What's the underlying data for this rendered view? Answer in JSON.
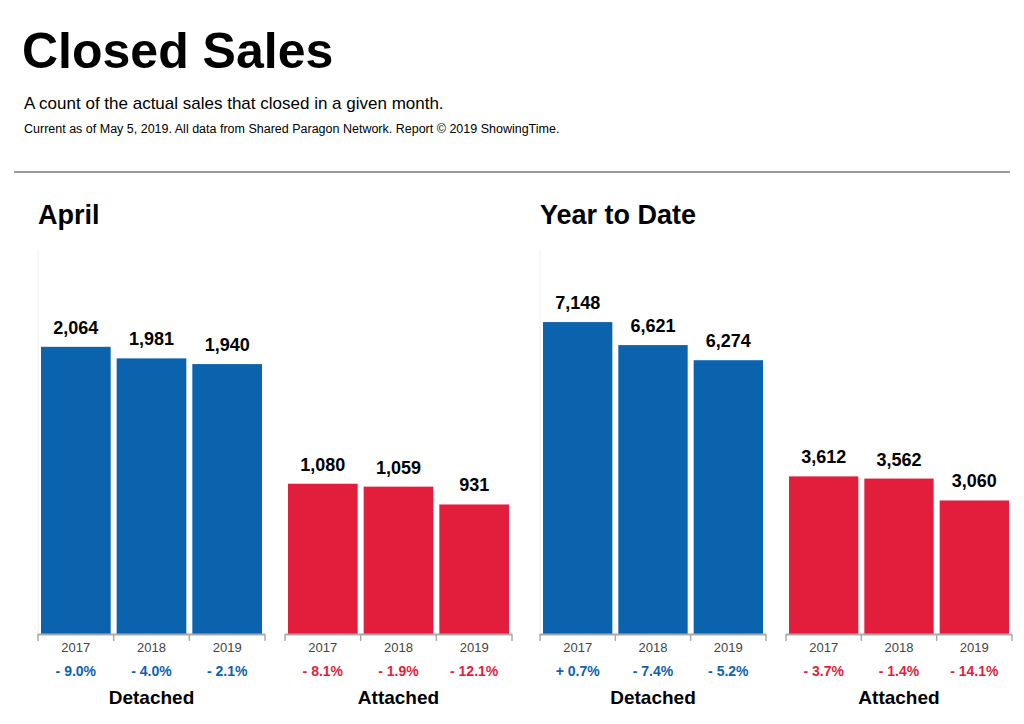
{
  "header": {
    "title": "Closed Sales",
    "subtitle": "A count of the actual sales that closed in a given month.",
    "note": "Current as of May 5, 2019. All data from Shared Paragon Network. Report © 2019 ShowingTime."
  },
  "chart_data": [
    {
      "type": "bar",
      "title": "April",
      "categories": [
        "2017",
        "2018",
        "2019"
      ],
      "ylim": [
        0,
        2760
      ],
      "tick_labels": false,
      "data_labels": true,
      "series": [
        {
          "name": "Detached",
          "color": "#0b63ae",
          "values": [
            2064,
            1981,
            1940
          ],
          "value_labels": [
            "2,064",
            "1,981",
            "1,940"
          ],
          "change_labels": [
            "- 9.0%",
            "- 4.0%",
            "- 2.1%"
          ]
        },
        {
          "name": "Attached",
          "color": "#e31d3c",
          "values": [
            1080,
            1059,
            931
          ],
          "value_labels": [
            "1,080",
            "1,059",
            "931"
          ],
          "change_labels": [
            "- 8.1%",
            "- 1.9%",
            "- 12.1%"
          ]
        }
      ]
    },
    {
      "type": "bar",
      "title": "Year to Date",
      "categories": [
        "2017",
        "2018",
        "2019"
      ],
      "ylim": [
        0,
        8800
      ],
      "tick_labels": false,
      "data_labels": true,
      "series": [
        {
          "name": "Detached",
          "color": "#0b63ae",
          "values": [
            7148,
            6621,
            6274
          ],
          "value_labels": [
            "7,148",
            "6,621",
            "6,274"
          ],
          "change_labels": [
            "+ 0.7%",
            "- 7.4%",
            "- 5.2%"
          ]
        },
        {
          "name": "Attached",
          "color": "#e31d3c",
          "values": [
            3612,
            3562,
            3060
          ],
          "value_labels": [
            "3,612",
            "3,562",
            "3,060"
          ],
          "change_labels": [
            "- 3.7%",
            "- 1.4%",
            "- 14.1%"
          ]
        }
      ]
    }
  ]
}
